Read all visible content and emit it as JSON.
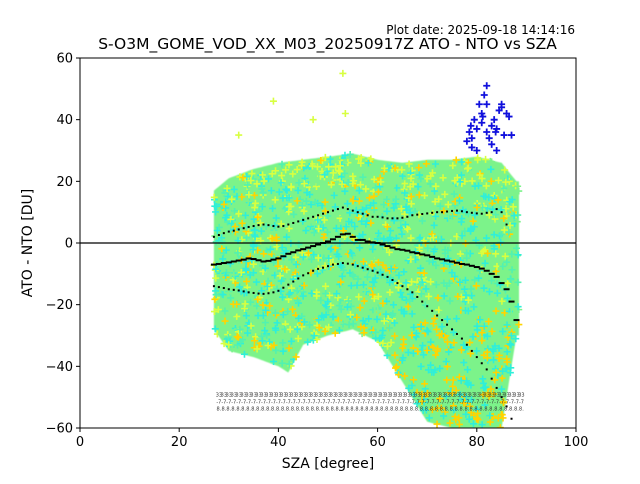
{
  "header": {
    "plot_date": "Plot date: 2025-09-18 14:14:16",
    "title": "S-O3M_GOME_VOD_XX_M03_20250917Z ATO - NTO vs SZA"
  },
  "colors": {
    "background": "#ffffff",
    "axis": "#000000",
    "cloud_main": "#7CF38A",
    "cloud_cyan": "#2FEFD9",
    "cloud_yellow": "#FFD400",
    "cloud_lime": "#D8FF40",
    "outlier_blue": "#1010DD",
    "markers": "#000000"
  },
  "chart_data": {
    "type": "scatter",
    "title": "S-O3M_GOME_VOD_XX_M03_20250917Z ATO - NTO vs SZA",
    "xlabel": "SZA [degree]",
    "ylabel": "ATO - NTO [DU]",
    "xlim": [
      0,
      100
    ],
    "ylim": [
      -60,
      60
    ],
    "xticks": [
      0,
      20,
      40,
      60,
      80,
      100
    ],
    "yticks": [
      -60,
      -40,
      -20,
      0,
      20,
      40,
      60
    ],
    "grid": false,
    "zero_line": 0,
    "point_marker": "plus",
    "point_cloud": {
      "x_range": [
        27,
        88.5
      ],
      "upper_envelope": [
        [
          27,
          17
        ],
        [
          30,
          21
        ],
        [
          35,
          24
        ],
        [
          40,
          26
        ],
        [
          45,
          27
        ],
        [
          50,
          28
        ],
        [
          55,
          29
        ],
        [
          60,
          27
        ],
        [
          65,
          26
        ],
        [
          70,
          27
        ],
        [
          75,
          27
        ],
        [
          80,
          28
        ],
        [
          85,
          26
        ],
        [
          88,
          20
        ]
      ],
      "lower_envelope": [
        [
          27,
          -28
        ],
        [
          30,
          -35
        ],
        [
          35,
          -37
        ],
        [
          40,
          -40
        ],
        [
          42,
          -42
        ],
        [
          45,
          -33
        ],
        [
          50,
          -30
        ],
        [
          55,
          -28
        ],
        [
          60,
          -32
        ],
        [
          65,
          -45
        ],
        [
          70,
          -58
        ],
        [
          75,
          -60
        ],
        [
          80,
          -60
        ],
        [
          85,
          -60
        ],
        [
          88,
          -30
        ]
      ]
    },
    "series": [
      {
        "name": "median",
        "x": [
          27,
          28,
          29,
          30,
          31,
          32,
          33,
          34,
          35,
          36,
          37,
          38,
          39,
          40,
          41,
          42,
          43,
          44,
          45,
          46,
          47,
          48,
          49,
          50,
          51,
          52,
          53,
          54,
          55,
          56,
          57,
          58,
          59,
          60,
          61,
          62,
          63,
          64,
          65,
          66,
          67,
          68,
          69,
          70,
          71,
          72,
          73,
          74,
          75,
          76,
          77,
          78,
          79,
          80,
          81,
          82,
          83,
          84,
          85,
          86,
          87,
          88
        ],
        "y": [
          -7,
          -6.8,
          -6.5,
          -6.3,
          -6,
          -5.7,
          -5.4,
          -5,
          -5.2,
          -5.6,
          -6,
          -5.8,
          -5.4,
          -5,
          -4.3,
          -3.5,
          -3,
          -2.4,
          -2,
          -1.5,
          -1,
          -0.5,
          0,
          0.5,
          1.2,
          2,
          2.8,
          3,
          2,
          1,
          1,
          0.5,
          0.2,
          0,
          -0.5,
          -1,
          -1.5,
          -2,
          -2.2,
          -2.5,
          -3,
          -3.3,
          -3.7,
          -4,
          -4.5,
          -5,
          -5.3,
          -5.7,
          -6,
          -6.4,
          -6.8,
          -7,
          -7.4,
          -7.8,
          -8.3,
          -9,
          -10,
          -11,
          -13,
          -15,
          -19,
          -25
        ]
      },
      {
        "name": "upper",
        "x": [
          27,
          28,
          29,
          30,
          31,
          32,
          33,
          34,
          35,
          36,
          37,
          38,
          39,
          40,
          41,
          42,
          43,
          44,
          45,
          46,
          47,
          48,
          49,
          50,
          51,
          52,
          53,
          54,
          55,
          56,
          57,
          58,
          59,
          60,
          61,
          62,
          63,
          64,
          65,
          66,
          67,
          68,
          69,
          70,
          71,
          72,
          73,
          74,
          75,
          76,
          77,
          78,
          79,
          80,
          81,
          82,
          83,
          84,
          85,
          86
        ],
        "y": [
          2,
          2.6,
          3.2,
          3.7,
          4,
          4.4,
          4.8,
          5.2,
          5.5,
          5.8,
          6,
          5.8,
          5.5,
          5.3,
          5.5,
          6,
          6.5,
          7,
          7.5,
          8,
          8.5,
          9,
          9.5,
          10,
          10.5,
          11,
          11.5,
          11,
          10.5,
          10,
          9.5,
          9,
          8.5,
          8.5,
          8.3,
          8,
          8,
          8,
          8.2,
          8.5,
          9,
          9.2,
          9.4,
          9.6,
          9.8,
          10,
          10,
          10.2,
          10.4,
          10.5,
          10.3,
          10,
          9.8,
          9.6,
          9.5,
          9.8,
          10,
          11,
          10,
          6
        ]
      },
      {
        "name": "lower",
        "x": [
          27,
          28,
          29,
          30,
          31,
          32,
          33,
          34,
          35,
          36,
          37,
          38,
          39,
          40,
          41,
          42,
          43,
          44,
          45,
          46,
          47,
          48,
          49,
          50,
          51,
          52,
          53,
          54,
          55,
          56,
          57,
          58,
          59,
          60,
          61,
          62,
          63,
          64,
          65,
          66,
          67,
          68,
          69,
          70,
          71,
          72,
          73,
          74,
          75,
          76,
          77,
          78,
          79,
          80,
          81,
          82,
          83,
          84,
          85,
          86,
          87
        ],
        "y": [
          -14,
          -14.3,
          -14.6,
          -15,
          -15.2,
          -15.4,
          -15.7,
          -16,
          -16.2,
          -16.4,
          -16.5,
          -16.3,
          -16,
          -15.5,
          -14.5,
          -13.5,
          -12.5,
          -11.5,
          -10.5,
          -9.8,
          -9,
          -8.4,
          -8,
          -7.5,
          -7,
          -6.8,
          -6.5,
          -6.7,
          -7,
          -7.5,
          -8,
          -8.5,
          -9,
          -9.6,
          -10.3,
          -11,
          -12,
          -13,
          -14,
          -15,
          -16,
          -17.5,
          -19,
          -20.5,
          -22,
          -23.5,
          -25,
          -26.5,
          -28,
          -29.5,
          -31,
          -33,
          -35,
          -37,
          -39,
          -41,
          -44,
          -47,
          -50,
          -53,
          -57
        ]
      }
    ],
    "outliers": {
      "x": [
        78,
        78.5,
        79,
        79.5,
        80,
        80.5,
        81,
        81.5,
        82,
        82,
        82.5,
        83,
        83.5,
        84,
        84.5,
        85,
        85.5,
        86,
        86.5,
        87,
        79,
        80,
        81,
        82,
        83,
        84,
        85,
        78.8,
        81.2,
        83.8
      ],
      "y": [
        33,
        36,
        31,
        40,
        37,
        45,
        42,
        48,
        51,
        36,
        34,
        38,
        40,
        30,
        43,
        44,
        35,
        42,
        41,
        35,
        34,
        30,
        39,
        45,
        32,
        37,
        45,
        38,
        41,
        36
      ]
    },
    "annotation_row_y": -52
  }
}
